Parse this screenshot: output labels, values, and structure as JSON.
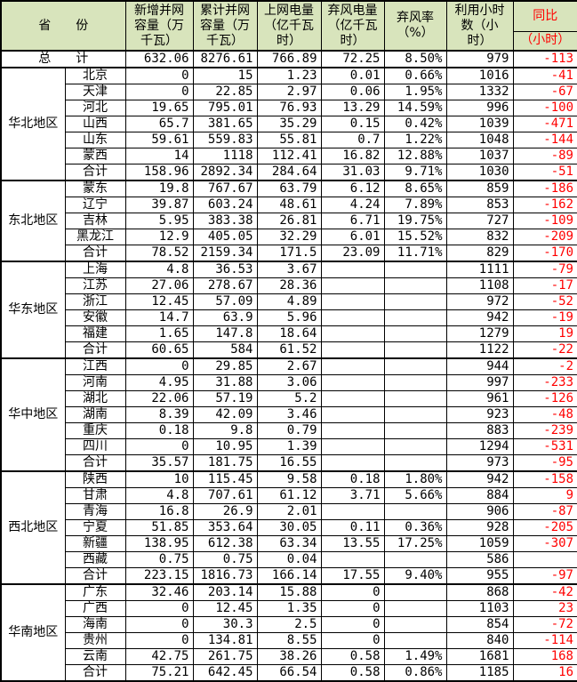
{
  "colors": {
    "header_bg": "#D8E4BC",
    "text": "#000000",
    "yoy_red": "#FF0000",
    "border": "#000000",
    "cell_bg": "#FFFFFF"
  },
  "header": {
    "province": "省　　份",
    "cols": [
      "新增并网\n容量（万\n千瓦）",
      "累计并网\n容量（万\n千瓦）",
      "上网电量\n（亿千瓦\n时）",
      "弃风电量\n（亿千瓦\n时）",
      "弃风率\n（%）",
      "利用小时\n数（小\n时）"
    ],
    "yoy": "同比",
    "yoy_unit": "（小时）"
  },
  "chart_data": {
    "type": "table",
    "columns": [
      "省份",
      "新增并网容量（万千瓦）",
      "累计并网容量（万千瓦）",
      "上网电量（亿千瓦时）",
      "弃风电量（亿千瓦时）",
      "弃风率（%）",
      "利用小时数（小时）",
      "同比（小时）"
    ],
    "total": {
      "label": "总　　计",
      "values": [
        "632.06",
        "8276.61",
        "766.89",
        "72.25",
        "8.50%",
        "979",
        "-113"
      ]
    },
    "regions": [
      {
        "name": "华北地区",
        "rows": [
          {
            "province": "北京",
            "values": [
              "0",
              "15",
              "1.23",
              "0.01",
              "0.66%",
              "1016",
              "-41"
            ]
          },
          {
            "province": "天津",
            "values": [
              "0",
              "22.85",
              "2.97",
              "0.06",
              "1.95%",
              "1332",
              "-67"
            ]
          },
          {
            "province": "河北",
            "values": [
              "19.65",
              "795.01",
              "76.93",
              "13.29",
              "14.59%",
              "996",
              "-100"
            ]
          },
          {
            "province": "山西",
            "values": [
              "65.7",
              "381.65",
              "35.29",
              "0.15",
              "0.42%",
              "1039",
              "-471"
            ]
          },
          {
            "province": "山东",
            "values": [
              "59.61",
              "559.83",
              "55.81",
              "0.7",
              "1.22%",
              "1048",
              "-144"
            ]
          },
          {
            "province": "蒙西",
            "values": [
              "14",
              "1118",
              "112.41",
              "16.82",
              "12.88%",
              "1037",
              "-89"
            ]
          },
          {
            "province": "合计",
            "values": [
              "158.96",
              "2892.34",
              "284.64",
              "31.03",
              "9.71%",
              "1030",
              "-51"
            ]
          }
        ]
      },
      {
        "name": "东北地区",
        "rows": [
          {
            "province": "蒙东",
            "values": [
              "19.8",
              "767.67",
              "63.79",
              "6.12",
              "8.65%",
              "859",
              "-186"
            ]
          },
          {
            "province": "辽宁",
            "values": [
              "39.87",
              "603.24",
              "48.61",
              "4.24",
              "7.89%",
              "853",
              "-162"
            ]
          },
          {
            "province": "吉林",
            "values": [
              "5.95",
              "383.38",
              "26.81",
              "6.71",
              "19.75%",
              "727",
              "-109"
            ]
          },
          {
            "province": "黑龙江",
            "values": [
              "12.9",
              "405.05",
              "32.29",
              "6.01",
              "15.52%",
              "832",
              "-209"
            ]
          },
          {
            "province": "合计",
            "values": [
              "78.52",
              "2159.34",
              "171.5",
              "23.09",
              "11.71%",
              "829",
              "-170"
            ]
          }
        ]
      },
      {
        "name": "华东地区",
        "rows": [
          {
            "province": "上海",
            "values": [
              "4.8",
              "36.53",
              "3.67",
              "",
              "",
              "1111",
              "-79"
            ]
          },
          {
            "province": "江苏",
            "values": [
              "27.06",
              "278.67",
              "28.36",
              "",
              "",
              "1108",
              "-17"
            ]
          },
          {
            "province": "浙江",
            "values": [
              "12.45",
              "57.09",
              "4.89",
              "",
              "",
              "972",
              "-52"
            ]
          },
          {
            "province": "安徽",
            "values": [
              "14.7",
              "63.9",
              "5.96",
              "",
              "",
              "942",
              "-19"
            ]
          },
          {
            "province": "福建",
            "values": [
              "1.65",
              "147.8",
              "18.64",
              "",
              "",
              "1279",
              "19"
            ]
          },
          {
            "province": "合计",
            "values": [
              "60.65",
              "584",
              "61.52",
              "",
              "",
              "1122",
              "-22"
            ]
          }
        ]
      },
      {
        "name": "华中地区",
        "rows": [
          {
            "province": "江西",
            "values": [
              "0",
              "29.85",
              "2.67",
              "",
              "",
              "944",
              "-2"
            ]
          },
          {
            "province": "河南",
            "values": [
              "4.95",
              "31.88",
              "3.06",
              "",
              "",
              "997",
              "-233"
            ]
          },
          {
            "province": "湖北",
            "values": [
              "22.06",
              "57.19",
              "5.2",
              "",
              "",
              "961",
              "-126"
            ]
          },
          {
            "province": "湖南",
            "values": [
              "8.39",
              "42.09",
              "3.46",
              "",
              "",
              "923",
              "-48"
            ]
          },
          {
            "province": "重庆",
            "values": [
              "0.18",
              "9.8",
              "0.79",
              "",
              "",
              "883",
              "-239"
            ]
          },
          {
            "province": "四川",
            "values": [
              "0",
              "10.95",
              "1.39",
              "",
              "",
              "1294",
              "-531"
            ]
          },
          {
            "province": "合计",
            "values": [
              "35.57",
              "181.75",
              "16.55",
              "",
              "",
              "973",
              "-95"
            ]
          }
        ]
      },
      {
        "name": "西北地区",
        "rows": [
          {
            "province": "陕西",
            "values": [
              "10",
              "115.45",
              "9.58",
              "0.18",
              "1.80%",
              "942",
              "-158"
            ]
          },
          {
            "province": "甘肃",
            "values": [
              "4.8",
              "707.61",
              "61.12",
              "3.71",
              "5.66%",
              "884",
              "9"
            ]
          },
          {
            "province": "青海",
            "values": [
              "16.8",
              "26.9",
              "2.01",
              "",
              "",
              "906",
              "-87"
            ]
          },
          {
            "province": "宁夏",
            "values": [
              "51.85",
              "353.64",
              "30.05",
              "0.11",
              "0.36%",
              "928",
              "-205"
            ]
          },
          {
            "province": "新疆",
            "values": [
              "138.95",
              "612.38",
              "63.34",
              "13.55",
              "17.25%",
              "1059",
              "-307"
            ]
          },
          {
            "province": "西藏",
            "values": [
              "0.75",
              "0.75",
              "0.04",
              "",
              "",
              "586",
              ""
            ]
          },
          {
            "province": "合计",
            "values": [
              "223.15",
              "1816.73",
              "166.14",
              "17.55",
              "9.40%",
              "955",
              "-97"
            ]
          }
        ]
      },
      {
        "name": "华南地区",
        "rows": [
          {
            "province": "广东",
            "values": [
              "32.46",
              "203.14",
              "15.88",
              "0",
              "",
              "868",
              "-42"
            ]
          },
          {
            "province": "广西",
            "values": [
              "0",
              "12.45",
              "1.35",
              "0",
              "",
              "1103",
              "23"
            ]
          },
          {
            "province": "海南",
            "values": [
              "0",
              "30.3",
              "2.5",
              "0",
              "",
              "854",
              "-72"
            ]
          },
          {
            "province": "贵州",
            "values": [
              "0",
              "134.81",
              "8.55",
              "0",
              "",
              "840",
              "-114"
            ]
          },
          {
            "province": "云南",
            "values": [
              "42.75",
              "261.75",
              "38.26",
              "0.58",
              "1.49%",
              "1681",
              "168"
            ]
          },
          {
            "province": "合计",
            "values": [
              "75.21",
              "642.45",
              "66.54",
              "0.58",
              "0.86%",
              "1185",
              "16"
            ]
          }
        ]
      }
    ]
  }
}
